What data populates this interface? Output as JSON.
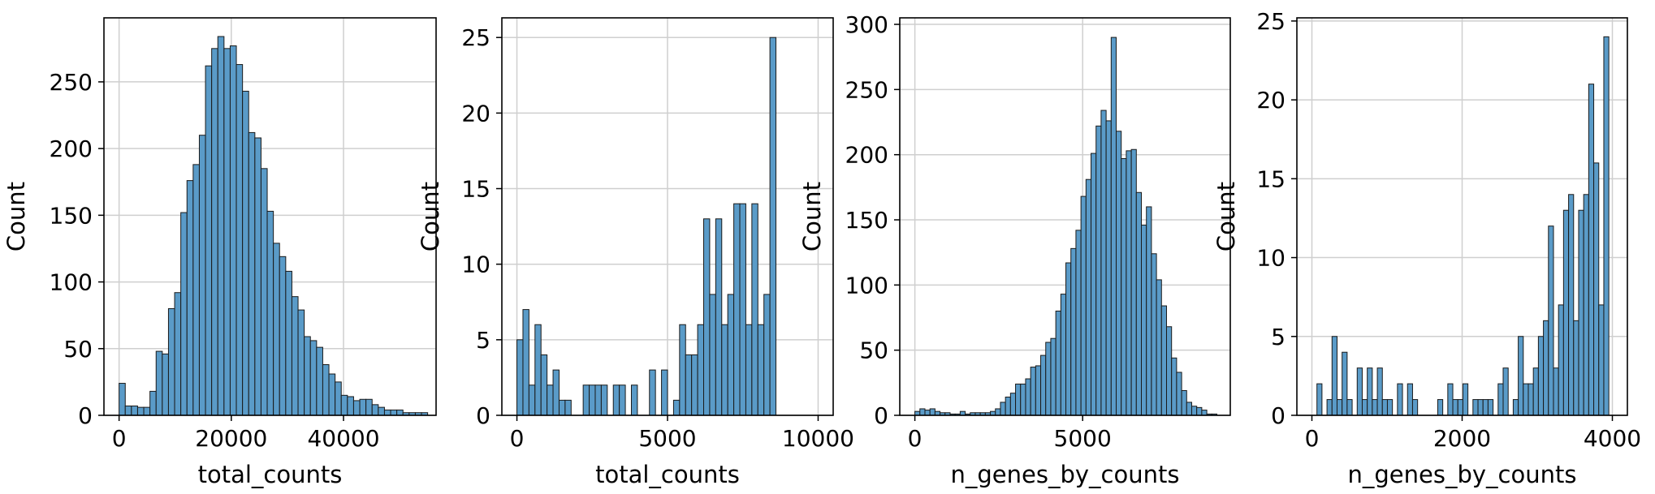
{
  "charts": [
    {
      "type": "bar",
      "xlabel": "total_counts",
      "ylabel": "Count",
      "xlim": [
        -2700,
        56500
      ],
      "ylim": [
        0,
        298
      ],
      "xticks": [
        0,
        20000,
        40000
      ],
      "xtick_labels": [
        "0",
        "20000",
        "40000"
      ],
      "yticks": [
        0,
        50,
        100,
        150,
        200,
        250
      ],
      "ytick_labels": [
        "0",
        "50",
        "100",
        "150",
        "200",
        "250"
      ],
      "grid": true,
      "bin_width": 1100,
      "x_start": 0,
      "values": [
        24,
        7,
        7,
        6,
        6,
        18,
        48,
        46,
        80,
        92,
        152,
        176,
        188,
        210,
        262,
        275,
        284,
        275,
        277,
        263,
        243,
        212,
        208,
        185,
        153,
        129,
        119,
        108,
        89,
        79,
        59,
        56,
        51,
        38,
        31,
        25,
        15,
        14,
        11,
        12,
        12,
        8,
        6,
        4,
        4,
        4,
        2,
        2,
        2,
        2
      ]
    },
    {
      "type": "bar",
      "xlabel": "total_counts",
      "ylabel": "Count",
      "xlim": [
        -500,
        10500
      ],
      "ylim": [
        0,
        26.3
      ],
      "xticks": [
        0,
        5000,
        10000
      ],
      "xtick_labels": [
        "0",
        "5000",
        "10000"
      ],
      "yticks": [
        0,
        5,
        10,
        15,
        20,
        25
      ],
      "ytick_labels": [
        "0",
        "5",
        "10",
        "15",
        "20",
        "25"
      ],
      "grid": true,
      "bin_width": 200,
      "x_start": 0,
      "values": [
        5,
        7,
        2,
        6,
        4,
        2,
        3,
        1,
        1,
        0,
        0,
        2,
        2,
        2,
        2,
        0,
        2,
        2,
        0,
        2,
        0,
        0,
        3,
        0,
        3,
        0,
        1,
        6,
        4,
        4,
        6,
        13,
        8,
        13,
        6,
        8,
        14,
        14,
        6,
        14,
        6,
        8,
        25
      ]
    },
    {
      "type": "bar",
      "xlabel": "n_genes_by_counts",
      "ylabel": "Count",
      "xlim": [
        -450,
        9400
      ],
      "ylim": [
        0,
        305
      ],
      "xticks": [
        0,
        5000
      ],
      "xtick_labels": [
        "0",
        "5000"
      ],
      "yticks": [
        0,
        50,
        100,
        150,
        200,
        250,
        300
      ],
      "ytick_labels": [
        "0",
        "50",
        "100",
        "150",
        "200",
        "250",
        "300"
      ],
      "grid": true,
      "bin_width": 150,
      "x_start": 0,
      "values": [
        3,
        5,
        4,
        5,
        3,
        2,
        2,
        1,
        1,
        3,
        1,
        2,
        2,
        2,
        2,
        3,
        5,
        10,
        14,
        17,
        24,
        24,
        28,
        37,
        38,
        46,
        56,
        59,
        80,
        93,
        117,
        128,
        142,
        168,
        181,
        201,
        222,
        234,
        226,
        290,
        218,
        197,
        203,
        204,
        171,
        146,
        160,
        124,
        104,
        84,
        68,
        44,
        33,
        19,
        10,
        7,
        6,
        4,
        1,
        1
      ]
    },
    {
      "type": "bar",
      "xlabel": "n_genes_by_counts",
      "ylabel": "Count",
      "xlim": [
        -200,
        4200
      ],
      "ylim": [
        0,
        25.2
      ],
      "xticks": [
        0,
        2000,
        4000
      ],
      "xtick_labels": [
        "0",
        "2000",
        "4000"
      ],
      "yticks": [
        0,
        5,
        10,
        15,
        20,
        25
      ],
      "ytick_labels": [
        "0",
        "5",
        "10",
        "15",
        "20",
        "25"
      ],
      "grid": true,
      "bin_width": 67,
      "x_start": 0,
      "values": [
        0,
        2,
        0,
        1,
        5,
        1,
        4,
        1,
        0,
        3,
        1,
        3,
        1,
        3,
        1,
        1,
        0,
        2,
        0,
        2,
        1,
        0,
        0,
        0,
        0,
        1,
        0,
        2,
        1,
        1,
        2,
        0,
        1,
        1,
        1,
        1,
        0,
        2,
        3,
        0,
        1,
        5,
        2,
        2,
        3,
        5,
        6,
        12,
        3,
        7,
        13,
        14,
        6,
        13,
        14,
        21,
        16,
        7,
        24
      ]
    }
  ]
}
